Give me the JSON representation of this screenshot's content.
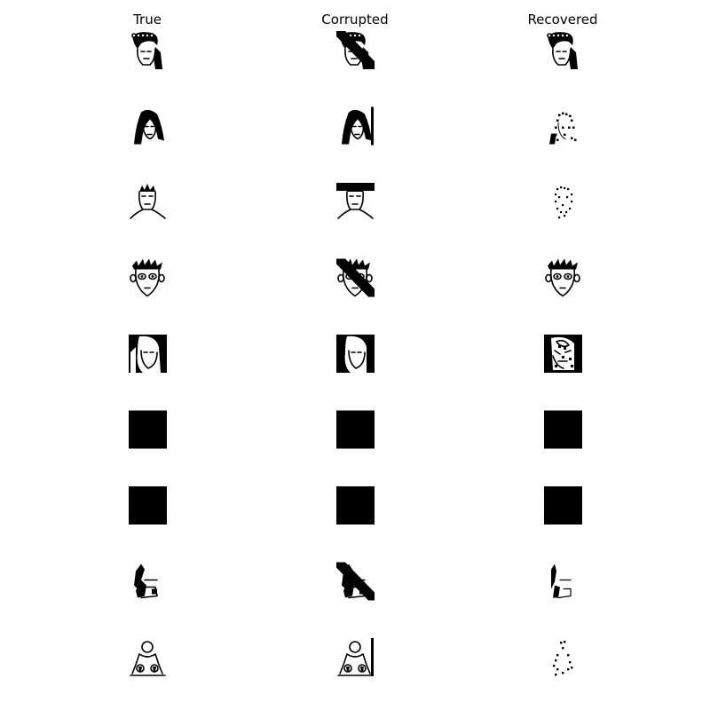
{
  "figure": {
    "columns": [
      {
        "key": "true",
        "title": "True"
      },
      {
        "key": "corrupted",
        "title": "Corrupted"
      },
      {
        "key": "recovered",
        "title": "Recovered"
      }
    ],
    "rows": [
      {
        "id": "face-1",
        "true": "face_hair_curl",
        "corrupted": {
          "base": "face_hair_curl",
          "corruption": "diagonal-stripe"
        },
        "recovered": "face_hair_curl"
      },
      {
        "id": "face-2",
        "true": "face_long_hair",
        "corrupted": {
          "base": "face_long_hair",
          "corruption": "vertical-line-right"
        },
        "recovered": "face_long_hair_sparse"
      },
      {
        "id": "face-3",
        "true": "face_man_spiky",
        "corrupted": {
          "base": "face_man_spiky",
          "corruption": "top-bar"
        },
        "recovered": "face_man_sparse"
      },
      {
        "id": "face-4",
        "true": "face_cartoon",
        "corrupted": {
          "base": "face_cartoon",
          "corruption": "diagonal-stripe"
        },
        "recovered": "face_cartoon"
      },
      {
        "id": "face-5",
        "true": "face_dark_bg",
        "corrupted": {
          "base": "face_dark_bg",
          "corruption": "side-bars"
        },
        "recovered": "face_dark_noisy"
      },
      {
        "id": "face-6",
        "true": "solid_black",
        "corrupted": {
          "base": "solid_black",
          "corruption": "none"
        },
        "recovered": "solid_black"
      },
      {
        "id": "face-7",
        "true": "solid_black",
        "corrupted": {
          "base": "solid_black",
          "corruption": "none"
        },
        "recovered": "solid_black"
      },
      {
        "id": "face-8",
        "true": "face_shadow",
        "corrupted": {
          "base": "face_shadow",
          "corruption": "diagonal-stripe"
        },
        "recovered": "face_shadow_sparse"
      },
      {
        "id": "face-9",
        "true": "figure_outline",
        "corrupted": {
          "base": "figure_outline",
          "corruption": "vertical-line-right"
        },
        "recovered": "figure_sparse"
      }
    ]
  }
}
